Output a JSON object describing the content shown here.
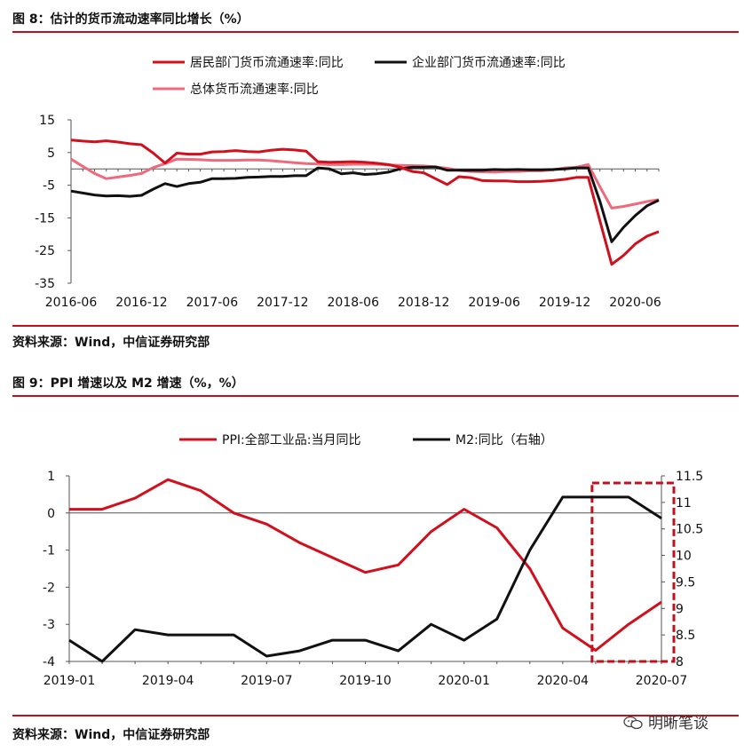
{
  "fig8": {
    "title": "图 8：估计的货币流动速率同比增长（%）",
    "source": "资料来源：Wind，中信证券研究部"
  },
  "fig9": {
    "title": "图 9：PPI 增速以及 M2 增速（%，%）",
    "source": "资料来源：Wind，中信证券研究部"
  },
  "watermark": {
    "text": "明晰笔谈",
    "icon": "wechat-icon"
  },
  "chart_data": [
    {
      "type": "line",
      "title": "",
      "xlabel": "",
      "ylabel": "",
      "ylim": [
        -35,
        15
      ],
      "yticks": [
        15,
        5,
        -5,
        -15,
        -25,
        -35
      ],
      "xticks": [
        "2016-06",
        "2016-12",
        "2017-06",
        "2017-12",
        "2018-06",
        "2018-12",
        "2019-06",
        "2019-12",
        "2020-06"
      ],
      "grid": false,
      "legend": "top",
      "x_start": "2016-06",
      "series": [
        {
          "name": "居民部门货币流通速率:同比",
          "color": "#d0101d",
          "values": [
            8.8,
            8.5,
            8.3,
            8.6,
            8.2,
            7.7,
            7.4,
            4.8,
            1.8,
            4.8,
            4.5,
            4.5,
            5.2,
            5.3,
            5.6,
            5.3,
            5.2,
            5.7,
            6.0,
            5.8,
            5.4,
            2.2,
            2.0,
            2.1,
            2.2,
            2.0,
            1.7,
            1.3,
            0.5,
            -0.8,
            -1.2,
            -3.0,
            -4.8,
            -2.4,
            -2.7,
            -3.6,
            -3.7,
            -3.7,
            -3.9,
            -3.9,
            -3.8,
            -3.6,
            -3.2,
            -2.6,
            -2.6,
            -16,
            -29.2,
            -26.5,
            -23,
            -20.6,
            -19.2
          ]
        },
        {
          "name": "企业部门货币流通速率:同比",
          "color": "#111111",
          "values": [
            -6.8,
            -7.4,
            -8.0,
            -8.3,
            -8.2,
            -8.4,
            -8.1,
            -6.2,
            -4.5,
            -5.4,
            -4.5,
            -4.1,
            -3.0,
            -3.0,
            -2.9,
            -2.6,
            -2.5,
            -2.3,
            -2.3,
            -2.1,
            -2.1,
            0.3,
            0.0,
            -1.5,
            -1.2,
            -1.7,
            -1.5,
            -1.0,
            0.0,
            0.5,
            0.5,
            0.6,
            -0.4,
            -0.4,
            -0.4,
            -0.4,
            -0.2,
            -0.3,
            -0.2,
            -0.3,
            -0.3,
            -0.2,
            0.0,
            0.3,
            0.3,
            -10,
            -22.3,
            -17.9,
            -14.3,
            -11.3,
            -9.6
          ]
        },
        {
          "name": "总体货币流通速率:同比",
          "color": "#ee6a7c",
          "values": [
            3.0,
            0.8,
            -1.4,
            -3.0,
            -2.5,
            -2.0,
            -1.4,
            0.4,
            1.6,
            3.0,
            2.9,
            2.8,
            2.6,
            2.6,
            2.6,
            2.7,
            2.7,
            2.5,
            2.2,
            1.9,
            1.6,
            1.5,
            1.3,
            1.3,
            1.4,
            1.4,
            1.4,
            1.2,
            1.1,
            1.0,
            0.9,
            0.6,
            0.2,
            -0.4,
            -0.8,
            -0.9,
            -1.0,
            -0.8,
            -0.8,
            -0.6,
            -0.6,
            -0.3,
            0.3,
            0.5,
            1.3,
            -5.5,
            -12.0,
            -11.5,
            -10.8,
            -10.0,
            -9.4
          ]
        }
      ]
    },
    {
      "type": "line",
      "title": "",
      "xlabel": "",
      "ylabel": "",
      "ylim": [
        -4,
        1
      ],
      "yticks": [
        1,
        0,
        -1,
        -2,
        -3,
        -4
      ],
      "y2lim": [
        8,
        11.5
      ],
      "y2ticks": [
        "11.5",
        "11",
        "10.5",
        "10",
        "9.5",
        "9",
        "8.5",
        "8"
      ],
      "categories": [
        "2019-01",
        "2019-02",
        "2019-03",
        "2019-04",
        "2019-05",
        "2019-06",
        "2019-07",
        "2019-08",
        "2019-09",
        "2019-10",
        "2019-11",
        "2019-12",
        "2020-01",
        "2020-02",
        "2020-03",
        "2020-04",
        "2020-05",
        "2020-06",
        "2020-07"
      ],
      "xticks": [
        "2019-01",
        "2019-04",
        "2019-07",
        "2019-10",
        "2020-01",
        "2020-04",
        "2020-07"
      ],
      "grid": false,
      "legend": "top",
      "series": [
        {
          "name": "PPI:全部工业品:当月同比",
          "axis": "left",
          "color": "#d0101d",
          "values": [
            0.1,
            0.1,
            0.4,
            0.9,
            0.6,
            0.0,
            -0.3,
            -0.8,
            -1.2,
            -1.6,
            -1.4,
            -0.5,
            0.1,
            -0.4,
            -1.5,
            -3.1,
            -3.7,
            -3.0,
            -2.4
          ]
        },
        {
          "name": "M2:同比（右轴）",
          "axis": "right",
          "color": "#111111",
          "values": [
            8.4,
            8.0,
            8.6,
            8.5,
            8.5,
            8.5,
            8.1,
            8.2,
            8.4,
            8.4,
            8.2,
            8.7,
            8.4,
            8.8,
            10.1,
            11.1,
            11.1,
            11.1,
            10.7
          ]
        }
      ],
      "annotation": {
        "type": "dashed-box",
        "color": "#c0101c",
        "from": "2020-05",
        "to": "2020-07"
      }
    }
  ]
}
